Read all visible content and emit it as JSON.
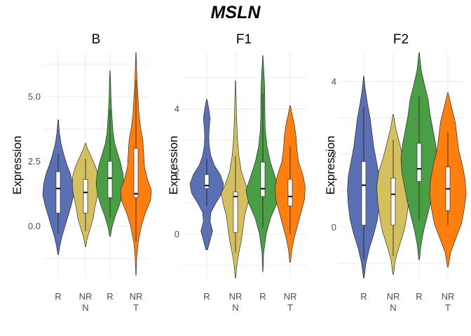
{
  "chart_data": {
    "type": "violin",
    "title": "MSLN",
    "ylabel": "Expression",
    "grid": true,
    "colors": {
      "R_N": "#5b6fb3",
      "NR_N": "#d4c05e",
      "R_T": "#4a9e45",
      "NR_T": "#ff7f0e"
    },
    "panels": [
      {
        "name": "B",
        "ylim": [
          -2.0,
          6.7
        ],
        "yticks": [
          0.0,
          2.5,
          5.0
        ],
        "ytick_labels": [
          "0.0",
          "2.5",
          "5.0"
        ],
        "groups": [
          {
            "x_label": "R",
            "x_sublabel": "",
            "group": "R_N",
            "min": -1.1,
            "q1": 0.5,
            "median": 1.45,
            "q3": 2.1,
            "max": 4.1,
            "whisker_low": -0.3,
            "whisker_high": 2.8,
            "density": [
              [
                -1.1,
                0.02
              ],
              [
                -0.8,
                0.1
              ],
              [
                -0.4,
                0.25
              ],
              [
                0.0,
                0.45
              ],
              [
                0.4,
                0.65
              ],
              [
                0.8,
                0.85
              ],
              [
                1.2,
                1.0
              ],
              [
                1.6,
                0.95
              ],
              [
                2.0,
                0.8
              ],
              [
                2.4,
                0.55
              ],
              [
                2.8,
                0.35
              ],
              [
                3.2,
                0.18
              ],
              [
                3.6,
                0.08
              ],
              [
                4.1,
                0.02
              ]
            ]
          },
          {
            "x_label": "NR",
            "x_sublabel": "N",
            "group": "NR_N",
            "min": -0.8,
            "q1": 0.5,
            "median": 1.3,
            "q3": 1.8,
            "max": 3.2,
            "whisker_low": -0.2,
            "whisker_high": 2.6,
            "density": [
              [
                -0.8,
                0.02
              ],
              [
                -0.5,
                0.1
              ],
              [
                -0.1,
                0.3
              ],
              [
                0.3,
                0.5
              ],
              [
                0.7,
                0.6
              ],
              [
                1.1,
                0.75
              ],
              [
                1.5,
                0.85
              ],
              [
                1.9,
                0.85
              ],
              [
                2.3,
                0.65
              ],
              [
                2.7,
                0.35
              ],
              [
                3.0,
                0.12
              ],
              [
                3.2,
                0.02
              ]
            ]
          },
          {
            "x_label": "R",
            "x_sublabel": "",
            "group": "R_T",
            "min": -0.4,
            "q1": 1.1,
            "median": 1.85,
            "q3": 2.5,
            "max": 6.0,
            "whisker_low": 0.3,
            "whisker_high": 4.5,
            "density": [
              [
                -0.4,
                0.02
              ],
              [
                0.0,
                0.15
              ],
              [
                0.4,
                0.35
              ],
              [
                0.8,
                0.6
              ],
              [
                1.2,
                0.8
              ],
              [
                1.6,
                0.9
              ],
              [
                2.0,
                0.85
              ],
              [
                2.4,
                0.7
              ],
              [
                2.8,
                0.5
              ],
              [
                3.2,
                0.3
              ],
              [
                3.6,
                0.2
              ],
              [
                4.0,
                0.15
              ],
              [
                4.5,
                0.1
              ],
              [
                5.0,
                0.06
              ],
              [
                5.5,
                0.04
              ],
              [
                6.0,
                0.01
              ]
            ]
          },
          {
            "x_label": "NR",
            "x_sublabel": "T",
            "group": "NR_T",
            "min": -1.9,
            "q1": 1.1,
            "median": 1.25,
            "q3": 3.0,
            "max": 6.7,
            "whisker_low": -0.6,
            "whisker_high": 5.6,
            "density": [
              [
                -1.9,
                0.01
              ],
              [
                -1.2,
                0.05
              ],
              [
                -0.6,
                0.15
              ],
              [
                0.0,
                0.35
              ],
              [
                0.5,
                0.6
              ],
              [
                1.0,
                0.95
              ],
              [
                1.4,
                1.0
              ],
              [
                1.8,
                0.75
              ],
              [
                2.3,
                0.55
              ],
              [
                2.8,
                0.5
              ],
              [
                3.3,
                0.45
              ],
              [
                3.8,
                0.3
              ],
              [
                4.3,
                0.2
              ],
              [
                4.8,
                0.15
              ],
              [
                5.3,
                0.1
              ],
              [
                5.8,
                0.06
              ],
              [
                6.3,
                0.03
              ],
              [
                6.7,
                0.01
              ]
            ]
          }
        ]
      },
      {
        "name": "F1",
        "ylim": [
          -1.4,
          5.8
        ],
        "yticks": [
          0,
          2,
          4
        ],
        "ytick_labels": [
          "0",
          "2",
          "4"
        ],
        "groups": [
          {
            "x_label": "R",
            "x_sublabel": "",
            "group": "R_N",
            "min": -0.5,
            "q1": 1.45,
            "median": 1.55,
            "q3": 1.9,
            "max": 4.3,
            "whisker_low": 0.9,
            "whisker_high": 2.4,
            "density": [
              [
                -0.5,
                0.05
              ],
              [
                -0.2,
                0.2
              ],
              [
                0.1,
                0.35
              ],
              [
                0.4,
                0.2
              ],
              [
                0.7,
                0.25
              ],
              [
                1.0,
                0.55
              ],
              [
                1.3,
                0.9
              ],
              [
                1.6,
                1.0
              ],
              [
                1.9,
                0.8
              ],
              [
                2.2,
                0.45
              ],
              [
                2.5,
                0.25
              ],
              [
                2.8,
                0.15
              ],
              [
                3.1,
                0.12
              ],
              [
                3.4,
                0.15
              ],
              [
                3.7,
                0.2
              ],
              [
                4.0,
                0.12
              ],
              [
                4.3,
                0.02
              ]
            ]
          },
          {
            "x_label": "NR",
            "x_sublabel": "N",
            "group": "NR_N",
            "min": -1.4,
            "q1": 0.05,
            "median": 1.2,
            "q3": 1.35,
            "max": 4.9,
            "whisker_low": -0.6,
            "whisker_high": 2.5,
            "density": [
              [
                -1.4,
                0.02
              ],
              [
                -1.0,
                0.08
              ],
              [
                -0.6,
                0.2
              ],
              [
                -0.2,
                0.35
              ],
              [
                0.2,
                0.45
              ],
              [
                0.6,
                0.55
              ],
              [
                1.0,
                0.75
              ],
              [
                1.3,
                0.85
              ],
              [
                1.6,
                0.6
              ],
              [
                2.0,
                0.35
              ],
              [
                2.5,
                0.2
              ],
              [
                3.0,
                0.12
              ],
              [
                3.5,
                0.08
              ],
              [
                4.0,
                0.05
              ],
              [
                4.5,
                0.03
              ],
              [
                4.9,
                0.01
              ]
            ]
          },
          {
            "x_label": "R",
            "x_sublabel": "",
            "group": "R_T",
            "min": -1.2,
            "q1": 1.2,
            "median": 1.45,
            "q3": 2.3,
            "max": 5.7,
            "whisker_low": 0.2,
            "whisker_high": 4.5,
            "density": [
              [
                -1.2,
                0.01
              ],
              [
                -0.6,
                0.05
              ],
              [
                0.0,
                0.2
              ],
              [
                0.5,
                0.45
              ],
              [
                1.0,
                0.85
              ],
              [
                1.4,
                1.0
              ],
              [
                1.8,
                0.75
              ],
              [
                2.3,
                0.45
              ],
              [
                2.8,
                0.25
              ],
              [
                3.3,
                0.15
              ],
              [
                3.8,
                0.12
              ],
              [
                4.3,
                0.12
              ],
              [
                4.8,
                0.1
              ],
              [
                5.3,
                0.05
              ],
              [
                5.7,
                0.01
              ]
            ]
          },
          {
            "x_label": "NR",
            "x_sublabel": "T",
            "group": "NR_T",
            "min": -0.9,
            "q1": 0.9,
            "median": 1.2,
            "q3": 1.75,
            "max": 4.1,
            "whisker_low": 0.0,
            "whisker_high": 2.8,
            "density": [
              [
                -0.9,
                0.02
              ],
              [
                -0.5,
                0.1
              ],
              [
                -0.1,
                0.25
              ],
              [
                0.3,
                0.45
              ],
              [
                0.7,
                0.65
              ],
              [
                1.1,
                0.85
              ],
              [
                1.5,
                0.9
              ],
              [
                1.9,
                0.75
              ],
              [
                2.3,
                0.5
              ],
              [
                2.7,
                0.4
              ],
              [
                3.1,
                0.35
              ],
              [
                3.5,
                0.25
              ],
              [
                3.8,
                0.12
              ],
              [
                4.1,
                0.02
              ]
            ]
          }
        ]
      },
      {
        "name": "F2",
        "ylim": [
          -1.4,
          4.8
        ],
        "yticks": [
          0,
          2,
          4
        ],
        "ytick_labels": [
          "0",
          "2",
          "4"
        ],
        "groups": [
          {
            "x_label": "R",
            "x_sublabel": "",
            "group": "R_N",
            "min": -1.4,
            "q1": 0.05,
            "median": 1.15,
            "q3": 1.8,
            "max": 4.15,
            "whisker_low": -0.9,
            "whisker_high": 3.3,
            "density": [
              [
                -1.4,
                0.02
              ],
              [
                -1.0,
                0.12
              ],
              [
                -0.6,
                0.3
              ],
              [
                -0.2,
                0.55
              ],
              [
                0.2,
                0.75
              ],
              [
                0.6,
                0.85
              ],
              [
                1.0,
                0.9
              ],
              [
                1.4,
                0.85
              ],
              [
                1.8,
                0.7
              ],
              [
                2.2,
                0.55
              ],
              [
                2.6,
                0.45
              ],
              [
                3.0,
                0.35
              ],
              [
                3.4,
                0.2
              ],
              [
                3.8,
                0.08
              ],
              [
                4.15,
                0.01
              ]
            ]
          },
          {
            "x_label": "NR",
            "x_sublabel": "N",
            "group": "NR_N",
            "min": -1.3,
            "q1": 0.05,
            "median": 0.9,
            "q3": 1.35,
            "max": 3.1,
            "whisker_low": -0.8,
            "whisker_high": 2.4,
            "density": [
              [
                -1.3,
                0.02
              ],
              [
                -0.9,
                0.12
              ],
              [
                -0.5,
                0.35
              ],
              [
                -0.1,
                0.6
              ],
              [
                0.3,
                0.75
              ],
              [
                0.7,
                0.85
              ],
              [
                1.1,
                0.9
              ],
              [
                1.5,
                0.8
              ],
              [
                1.9,
                0.55
              ],
              [
                2.3,
                0.35
              ],
              [
                2.7,
                0.15
              ],
              [
                3.1,
                0.01
              ]
            ]
          },
          {
            "x_label": "R",
            "x_sublabel": "",
            "group": "R_T",
            "min": -0.9,
            "q1": 1.25,
            "median": 1.6,
            "q3": 2.3,
            "max": 4.8,
            "whisker_low": 0.2,
            "whisker_high": 3.6,
            "density": [
              [
                -0.9,
                0.02
              ],
              [
                -0.5,
                0.1
              ],
              [
                -0.1,
                0.25
              ],
              [
                0.3,
                0.45
              ],
              [
                0.7,
                0.65
              ],
              [
                1.1,
                0.8
              ],
              [
                1.5,
                0.95
              ],
              [
                1.9,
                1.0
              ],
              [
                2.3,
                0.9
              ],
              [
                2.7,
                0.75
              ],
              [
                3.1,
                0.6
              ],
              [
                3.5,
                0.5
              ],
              [
                3.9,
                0.3
              ],
              [
                4.3,
                0.12
              ],
              [
                4.8,
                0.01
              ]
            ]
          },
          {
            "x_label": "NR",
            "x_sublabel": "T",
            "group": "NR_T",
            "min": -1.1,
            "q1": 0.45,
            "median": 1.05,
            "q3": 1.65,
            "max": 3.7,
            "whisker_low": 0.05,
            "whisker_high": 2.6,
            "density": [
              [
                -1.1,
                0.02
              ],
              [
                -0.7,
                0.15
              ],
              [
                -0.3,
                0.45
              ],
              [
                0.1,
                0.75
              ],
              [
                0.5,
                0.9
              ],
              [
                0.9,
                1.0
              ],
              [
                1.3,
                0.95
              ],
              [
                1.7,
                0.8
              ],
              [
                2.1,
                0.6
              ],
              [
                2.5,
                0.5
              ],
              [
                2.9,
                0.4
              ],
              [
                3.3,
                0.2
              ],
              [
                3.7,
                0.01
              ]
            ]
          }
        ]
      }
    ]
  }
}
